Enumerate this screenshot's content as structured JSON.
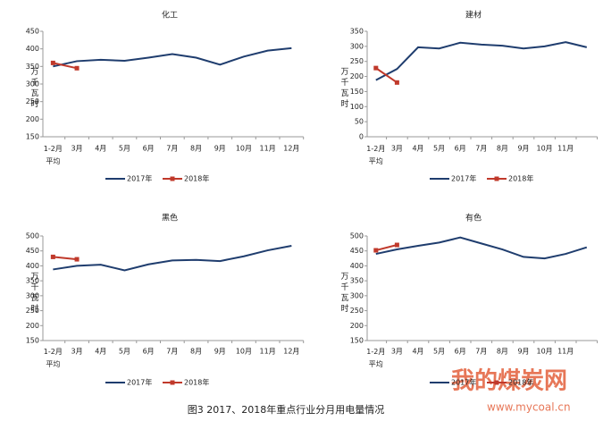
{
  "chart_data": [
    {
      "type": "line",
      "title": "化工",
      "y_label": "万千瓦时",
      "categories": [
        "1-2月\n平均",
        "3月",
        "4月",
        "5月",
        "6月",
        "7月",
        "8月",
        "9月",
        "10月",
        "11月",
        "12月"
      ],
      "series": [
        {
          "name": "2017年",
          "color": "#1f3d6e",
          "values": [
            350,
            365,
            369,
            366,
            375,
            385,
            375,
            355,
            378,
            395,
            402
          ]
        },
        {
          "name": "2018年",
          "color": "#c0392b",
          "values": [
            360,
            345,
            null,
            null,
            null,
            null,
            null,
            null,
            null,
            null,
            null
          ]
        }
      ],
      "ylim": [
        150,
        450
      ],
      "yticks": [
        150,
        200,
        250,
        300,
        350,
        400,
        450
      ]
    },
    {
      "type": "line",
      "title": "建材",
      "y_label": "万千瓦时",
      "categories": [
        "1-2月\n平均",
        "3月",
        "4月",
        "5月",
        "6月",
        "7月",
        "8月",
        "9月",
        "10月",
        "11月",
        null
      ],
      "series": [
        {
          "name": "2017年",
          "color": "#1f3d6e",
          "values": [
            188,
            225,
            297,
            293,
            312,
            306,
            302,
            293,
            300,
            314,
            297
          ]
        },
        {
          "name": "2018年",
          "color": "#c0392b",
          "values": [
            228,
            180,
            null,
            null,
            null,
            null,
            null,
            null,
            null,
            null,
            null
          ]
        }
      ],
      "ylim": [
        0,
        350
      ],
      "yticks": [
        0,
        50,
        100,
        150,
        200,
        250,
        300,
        350
      ]
    },
    {
      "type": "line",
      "title": "黑色",
      "y_label": "万千瓦时",
      "categories": [
        "1-2月\n平均",
        "3月",
        "4月",
        "5月",
        "6月",
        "7月",
        "8月",
        "9月",
        "10月",
        "11月",
        "12月"
      ],
      "series": [
        {
          "name": "2017年",
          "color": "#1f3d6e",
          "values": [
            388,
            400,
            404,
            385,
            405,
            418,
            420,
            416,
            432,
            452,
            467
          ]
        },
        {
          "name": "2018年",
          "color": "#c0392b",
          "values": [
            430,
            422,
            null,
            null,
            null,
            null,
            null,
            null,
            null,
            null,
            null
          ]
        }
      ],
      "ylim": [
        150,
        500
      ],
      "yticks": [
        150,
        200,
        250,
        300,
        350,
        400,
        450,
        500
      ]
    },
    {
      "type": "line",
      "title": "有色",
      "y_label": "万千瓦时",
      "categories": [
        "1-2月\n平均",
        "3月",
        "4月",
        "5月",
        "6月",
        "7月",
        "8月",
        "9月",
        "10月",
        "11月",
        null
      ],
      "series": [
        {
          "name": "2017年",
          "color": "#1f3d6e",
          "values": [
            440,
            455,
            467,
            478,
            495,
            475,
            455,
            430,
            425,
            440,
            462
          ]
        },
        {
          "name": "2018年",
          "color": "#c0392b",
          "values": [
            452,
            470,
            null,
            null,
            null,
            null,
            null,
            null,
            null,
            null,
            null
          ]
        }
      ],
      "ylim": [
        150,
        500
      ],
      "yticks": [
        150,
        200,
        250,
        300,
        350,
        400,
        450,
        500
      ]
    }
  ],
  "caption": "图3   2017、2018年重点行业分月用电量情况",
  "watermark": "我的煤炭网",
  "watermark_url": "www.mycoal.cn"
}
